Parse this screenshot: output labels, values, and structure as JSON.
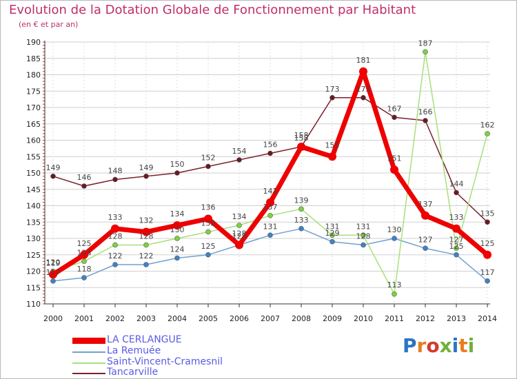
{
  "title": "Evolution de la Dotation Globale de Fonctionnement par Habitant",
  "subtitle": "(en € et par an)",
  "logo": "Proxiti",
  "colors": {
    "title": "#bf2e6a",
    "legend_text": "#5a5ae6",
    "grid": "#cfcfcf",
    "axis": "#333333",
    "tick_text": "#222222",
    "value_text": "#444444"
  },
  "chart_data": {
    "type": "line",
    "title": "Evolution de la Dotation Globale de Fonctionnement par Habitant",
    "subtitle": "(en € et par an)",
    "xlabel": "",
    "ylabel": "",
    "x": [
      2000,
      2001,
      2002,
      2003,
      2004,
      2005,
      2006,
      2007,
      2008,
      2009,
      2010,
      2011,
      2012,
      2013,
      2014
    ],
    "ylim": [
      110,
      190
    ],
    "yticks": [
      110,
      115,
      120,
      125,
      130,
      135,
      140,
      145,
      150,
      155,
      160,
      165,
      170,
      175,
      180,
      185,
      190
    ],
    "grid": "horizontal",
    "legend_position": "bottom-left",
    "series": [
      {
        "name": "Tancarville",
        "color": "#7a1f2a",
        "marker": "#6b1a22",
        "values": [
          149,
          146,
          148,
          149,
          150,
          152,
          154,
          156,
          158,
          173,
          173,
          167,
          166,
          144,
          135
        ]
      },
      {
        "name": "La Remuée",
        "color": "#6fa0d0",
        "marker": "#3f82c6",
        "values": [
          117,
          118,
          122,
          122,
          124,
          125,
          128,
          131,
          133,
          129,
          128,
          130,
          127,
          125,
          117
        ]
      },
      {
        "name": "Saint-Vincent-Cramesnil",
        "color": "#a8e07a",
        "marker": "#7ed23c",
        "values": [
          120,
          123,
          128,
          128,
          130,
          132,
          134,
          137,
          139,
          131,
          131,
          113,
          187,
          127,
          162
        ]
      },
      {
        "name": "LA CERLANGUE",
        "color": "#ee0000",
        "marker": "#ee0000",
        "values": [
          119,
          125,
          133,
          132,
          134,
          136,
          128,
          141,
          158,
          155,
          181,
          151,
          137,
          133,
          125
        ]
      }
    ],
    "legend": [
      "LA CERLANGUE",
      "La Remuée",
      "Saint-Vincent-Cramesnil",
      "Tancarville"
    ]
  }
}
